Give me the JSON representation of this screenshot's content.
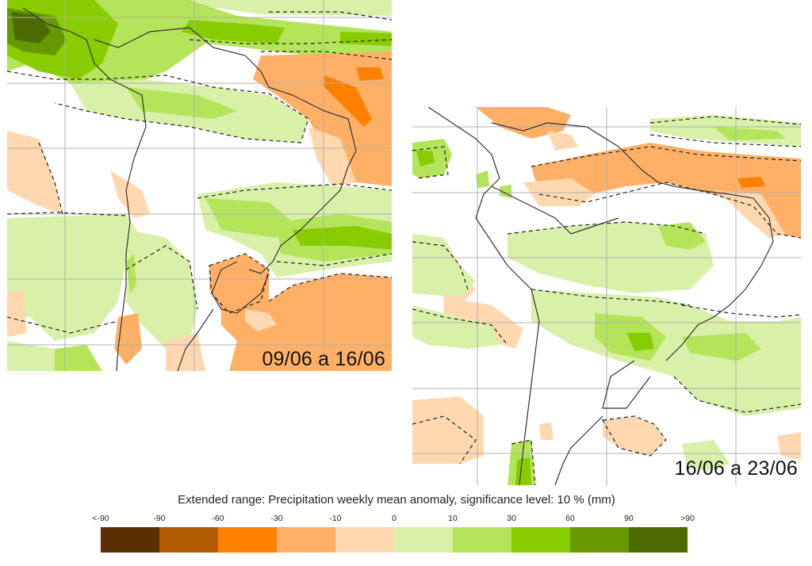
{
  "figure": {
    "panels": [
      {
        "id": "week1",
        "label": "09/06 a 16/06"
      },
      {
        "id": "week2",
        "label": "16/06 a 23/06"
      }
    ],
    "legend": {
      "title": "Extended range: Precipitation weekly mean anomaly, significance level: 10 % (mm)",
      "ticks": [
        "<-90",
        "-90",
        "-60",
        "-30",
        "-10",
        "0",
        "10",
        "30",
        "60",
        "90",
        ">90"
      ],
      "colors": [
        "#5a2e00",
        "#b05a00",
        "#ff8000",
        "#ffb066",
        "#ffd8b0",
        "#d8f0a8",
        "#b4e45a",
        "#88cc00",
        "#669900",
        "#4d6a00"
      ]
    },
    "styles": {
      "significance_contour": "dashed-black",
      "coastline_color": "#333333",
      "grid_color": "#b0b0b0"
    }
  }
}
